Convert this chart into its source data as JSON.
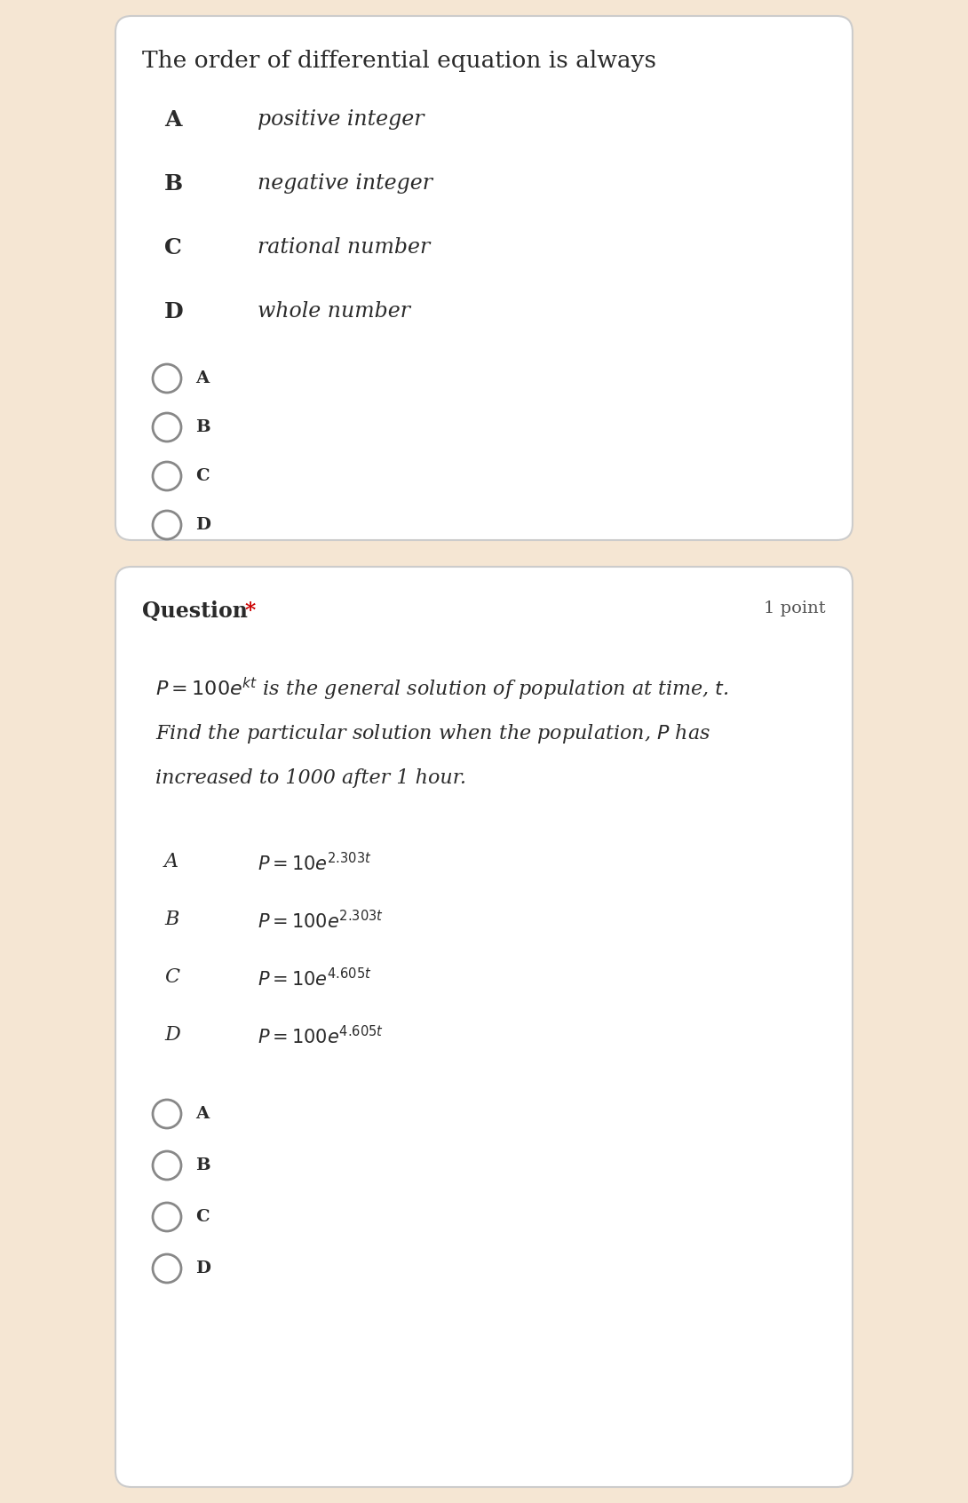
{
  "bg_color": "#f5e6d3",
  "card_color": "#ffffff",
  "card_border_color": "#d8d8d8",
  "text_color": "#2a2a2a",
  "q1_title": "The order of differential equation is always",
  "q1_options": [
    [
      "A",
      "positive integer"
    ],
    [
      "B",
      "negative integer"
    ],
    [
      "C",
      "rational number"
    ],
    [
      "D",
      "whole number"
    ]
  ],
  "q1_radio_labels": [
    "A",
    "B",
    "C",
    "D"
  ],
  "q2_options_math": [
    [
      "A",
      "$P=10e^{2.303t}$"
    ],
    [
      "B",
      "$P=100e^{2.303t}$"
    ],
    [
      "C",
      "$P=10e^{4.605t}$"
    ],
    [
      "D",
      "$P=100e^{4.605t}$"
    ]
  ],
  "q2_radio_labels": [
    "A",
    "B",
    "C",
    "D"
  ]
}
